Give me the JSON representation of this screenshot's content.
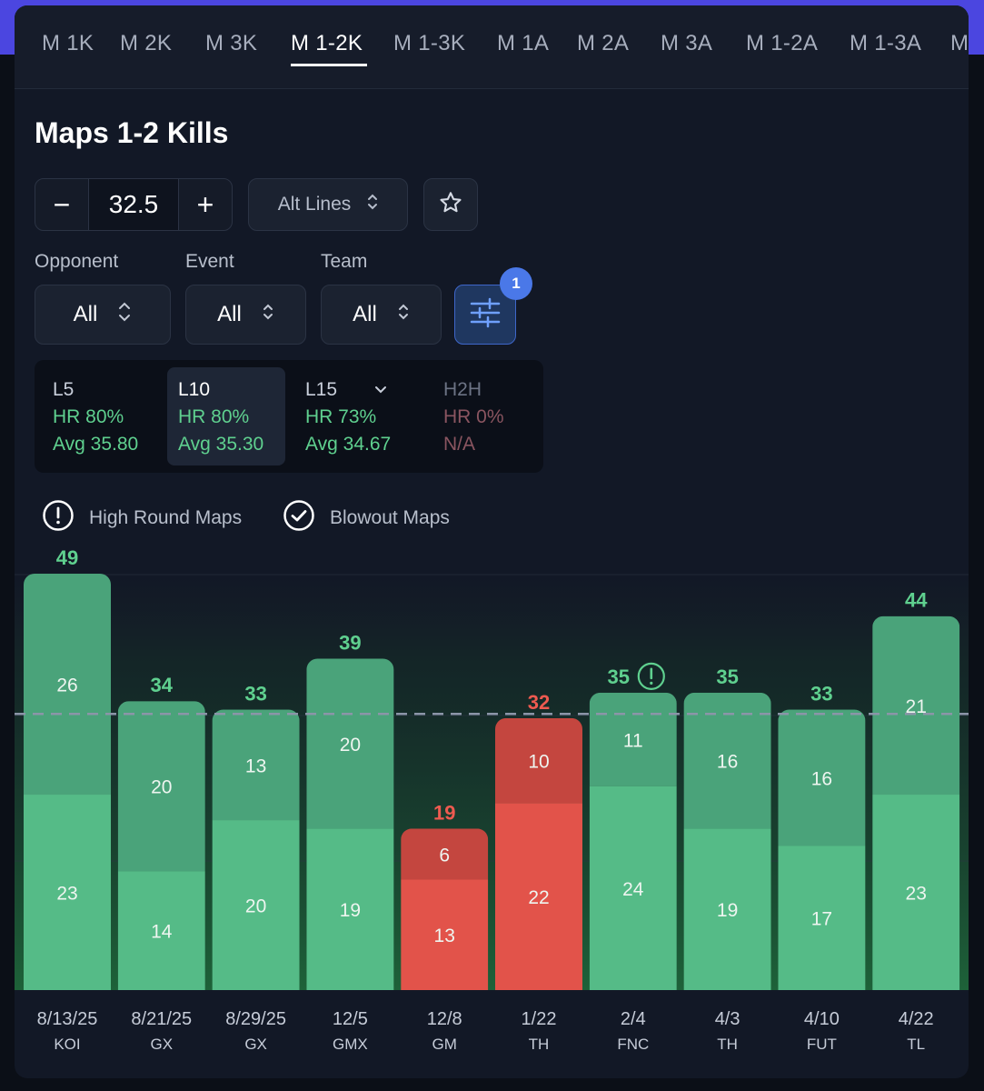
{
  "tabs": [
    {
      "label": "M 1K",
      "active": false
    },
    {
      "label": "M 2K",
      "active": false
    },
    {
      "label": "M 3K",
      "active": false
    },
    {
      "label": "M 1-2K",
      "active": true
    },
    {
      "label": "M 1-3K",
      "active": false
    },
    {
      "label": "M 1A",
      "active": false
    },
    {
      "label": "M 2A",
      "active": false
    },
    {
      "label": "M 3A",
      "active": false
    },
    {
      "label": "M 1-2A",
      "active": false
    },
    {
      "label": "M 1-3A",
      "active": false
    },
    {
      "label": "M",
      "active": false
    }
  ],
  "page_title": "Maps 1-2 Kills",
  "line": {
    "value": "32.5",
    "minus": "−",
    "plus": "+"
  },
  "alt_lines_label": "Alt Lines",
  "filters": {
    "opponent": {
      "label": "Opponent",
      "value": "All"
    },
    "event": {
      "label": "Event",
      "value": "All"
    },
    "team": {
      "label": "Team",
      "value": "All"
    },
    "active_count": "1"
  },
  "stats": [
    {
      "name": "L5",
      "hr": "HR 80%",
      "avg": "Avg 35.80"
    },
    {
      "name": "L10",
      "hr": "HR 80%",
      "avg": "Avg 35.30"
    },
    {
      "name": "L15",
      "hr": "HR 73%",
      "avg": "Avg 34.67"
    },
    {
      "name": "H2H",
      "hr": "HR 0%",
      "avg": "N/A"
    }
  ],
  "toggles": {
    "high_round": "High Round Maps",
    "blowout": "Blowout Maps"
  },
  "colors": {
    "over": "#55bb87",
    "over_top": "#4aa37a",
    "under": "#e2534a",
    "under_top": "#c4463f",
    "over_text": "#5fd08f",
    "under_text": "#ee5a50",
    "accent": "#4a78e8"
  },
  "chart_data": {
    "type": "bar",
    "stacked": true,
    "line": 32.5,
    "ylim": [
      0,
      49
    ],
    "categories": [
      "8/13/25",
      "8/21/25",
      "8/29/25",
      "12/5",
      "12/8",
      "1/22",
      "2/4",
      "4/3",
      "4/10",
      "4/22"
    ],
    "teams": [
      "KOI",
      "GX",
      "GX",
      "GMX",
      "GM",
      "TH",
      "FNC",
      "TH",
      "FUT",
      "TL"
    ],
    "totals": [
      49,
      34,
      33,
      39,
      19,
      32,
      35,
      35,
      33,
      44
    ],
    "series": [
      {
        "values": [
          23,
          14,
          20,
          19,
          13,
          22,
          24,
          19,
          17,
          23
        ]
      },
      {
        "values": [
          26,
          20,
          13,
          20,
          6,
          10,
          11,
          16,
          16,
          21
        ]
      }
    ],
    "high_round_flags": [
      false,
      false,
      false,
      false,
      false,
      false,
      true,
      false,
      false,
      false
    ]
  }
}
